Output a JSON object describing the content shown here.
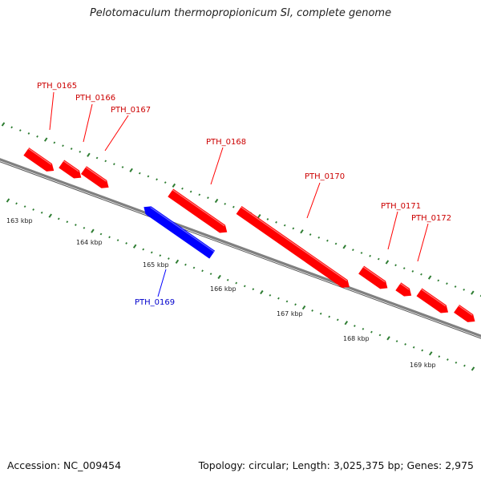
{
  "title": "Pelotomaculum thermopropionicum SI, complete genome",
  "footer": {
    "accession": "Accession: NC_009454",
    "summary": "Topology: circular; Length: 3,025,375 bp; Genes: 2,975"
  },
  "colors": {
    "forward": "#ff0000",
    "reverse": "#0000ff",
    "backbone": "#808080",
    "ticks": "#2e7d32",
    "forward_label": "#cc0000",
    "reverse_label": "#0000cc"
  },
  "scale_labels": [
    "163 kbp",
    "164 kbp",
    "165 kbp",
    "166 kbp",
    "167 kbp",
    "168 kbp",
    "169 kbp"
  ],
  "genes": [
    {
      "name": "PTH_0165",
      "strand": "forward"
    },
    {
      "name": "PTH_0166",
      "strand": "forward"
    },
    {
      "name": "PTH_0167",
      "strand": "forward"
    },
    {
      "name": "PTH_0168",
      "strand": "forward"
    },
    {
      "name": "PTH_0169",
      "strand": "reverse"
    },
    {
      "name": "PTH_0170",
      "strand": "forward"
    },
    {
      "name": "PTH_0171",
      "strand": "forward"
    },
    {
      "name": "PTH_0172",
      "strand": "forward"
    }
  ]
}
